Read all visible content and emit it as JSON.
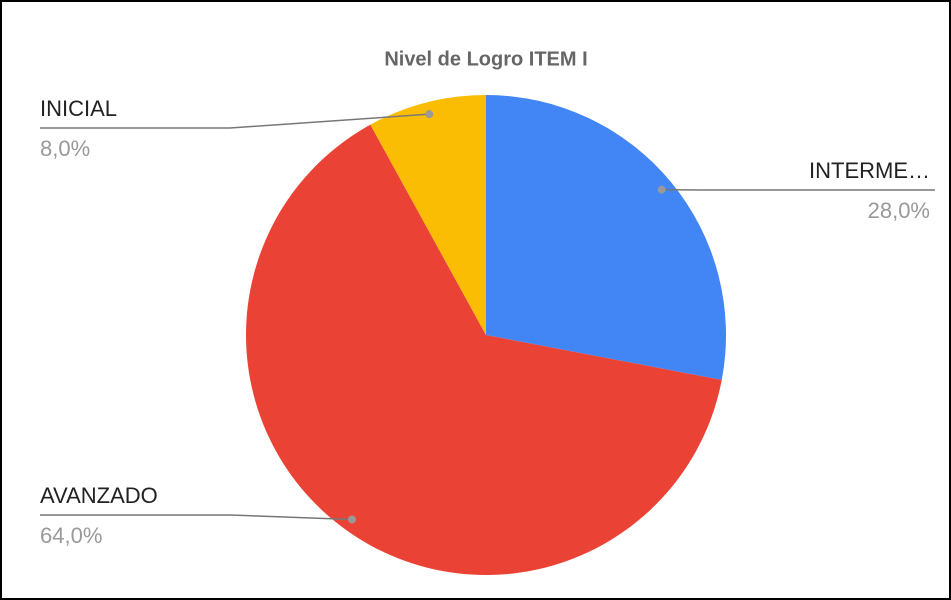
{
  "chart_data": {
    "type": "pie",
    "title": "Nivel de Logro ITEM I",
    "categories": [
      "INTERME…",
      "AVANZADO",
      "INICIAL"
    ],
    "values": [
      28,
      64,
      8
    ],
    "value_labels": [
      "28,0%",
      "64,0%",
      "8,0%"
    ],
    "colors": [
      "#4285f4",
      "#ea4335",
      "#fbbc04"
    ]
  }
}
